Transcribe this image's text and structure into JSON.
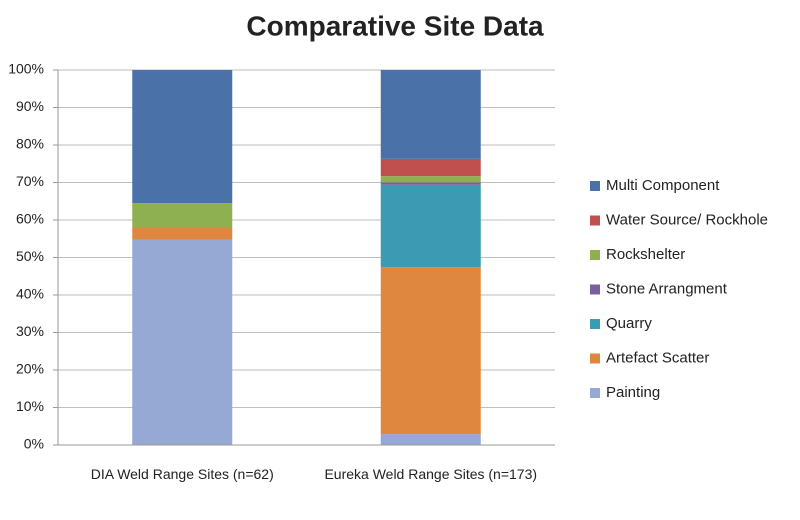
{
  "chart_data": {
    "type": "stacked_bar",
    "title": "Comparative Site Data",
    "categories": [
      "DIA Weld Range Sites (n=62)",
      "Eureka Weld Range Sites (n=173)"
    ],
    "series": [
      {
        "name": "Painting",
        "color": "#95a9d4",
        "values": [
          54.8,
          2.9
        ]
      },
      {
        "name": "Artefact Scatter",
        "color": "#e0873f",
        "values": [
          3.2,
          44.5
        ]
      },
      {
        "name": "Quarry",
        "color": "#3c9ab2",
        "values": [
          0,
          22.0
        ]
      },
      {
        "name": "Stone Arrangment",
        "color": "#7a5fa0",
        "values": [
          0,
          0.6
        ]
      },
      {
        "name": "Rockshelter",
        "color": "#8fb050",
        "values": [
          6.5,
          1.7
        ]
      },
      {
        "name": "Water Source/ Rockhole",
        "color": "#c0504d",
        "values": [
          0,
          4.6
        ]
      },
      {
        "name": "Multi Component",
        "color": "#4a72a8",
        "values": [
          35.5,
          23.7
        ]
      }
    ],
    "ylim": [
      0,
      100
    ],
    "yticks": [
      {
        "value": 0,
        "label": "0%"
      },
      {
        "value": 10,
        "label": "10%"
      },
      {
        "value": 20,
        "label": "20%"
      },
      {
        "value": 30,
        "label": "30%"
      },
      {
        "value": 40,
        "label": "40%"
      },
      {
        "value": 50,
        "label": "50%"
      },
      {
        "value": 60,
        "label": "60%"
      },
      {
        "value": 70,
        "label": "70%"
      },
      {
        "value": 80,
        "label": "80%"
      },
      {
        "value": 90,
        "label": "90%"
      },
      {
        "value": 100,
        "label": "100%"
      }
    ],
    "grid": true,
    "legend": "right"
  }
}
